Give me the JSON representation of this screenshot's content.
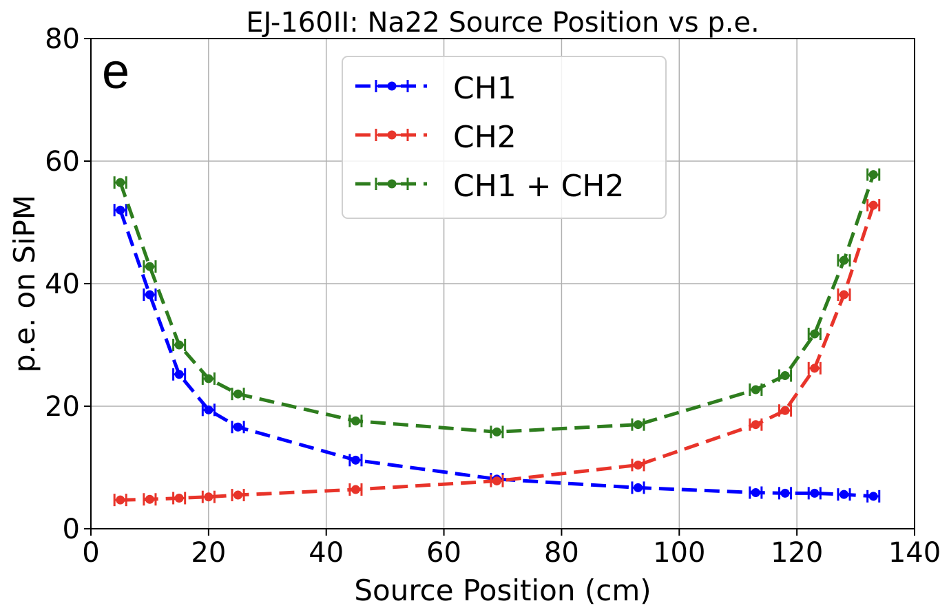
{
  "chart_data": {
    "type": "line",
    "title": "EJ-160II: Na22 Source Position vs p.e.",
    "panel_label": "e",
    "xlabel": "Source Position (cm)",
    "ylabel": "p.e. on SiPM",
    "xlim": [
      0,
      140
    ],
    "ylim": [
      0,
      80
    ],
    "xticks": [
      0,
      20,
      40,
      60,
      80,
      100,
      120,
      140
    ],
    "yticks": [
      0,
      20,
      40,
      60,
      80
    ],
    "grid": true,
    "legend_position": "top-center",
    "x": [
      5,
      10,
      15,
      20,
      25,
      45,
      69,
      93,
      113,
      118,
      123,
      128,
      133
    ],
    "x_error": 1,
    "series": [
      {
        "name": "CH1",
        "color": "#0000ff",
        "values": [
          52.0,
          38.2,
          25.2,
          19.4,
          16.6,
          11.2,
          8.1,
          6.7,
          5.9,
          5.8,
          5.8,
          5.6,
          5.3
        ]
      },
      {
        "name": "CH2",
        "color": "#e8342a",
        "values": [
          4.7,
          4.8,
          5.0,
          5.2,
          5.5,
          6.4,
          7.8,
          10.4,
          17.0,
          19.3,
          26.2,
          38.2,
          52.8
        ]
      },
      {
        "name": "CH1 + CH2",
        "color": "#2e7d1e",
        "values": [
          56.5,
          42.8,
          30.0,
          24.5,
          22.0,
          17.6,
          15.8,
          17.0,
          22.7,
          25.0,
          31.8,
          43.8,
          57.8
        ]
      }
    ]
  }
}
